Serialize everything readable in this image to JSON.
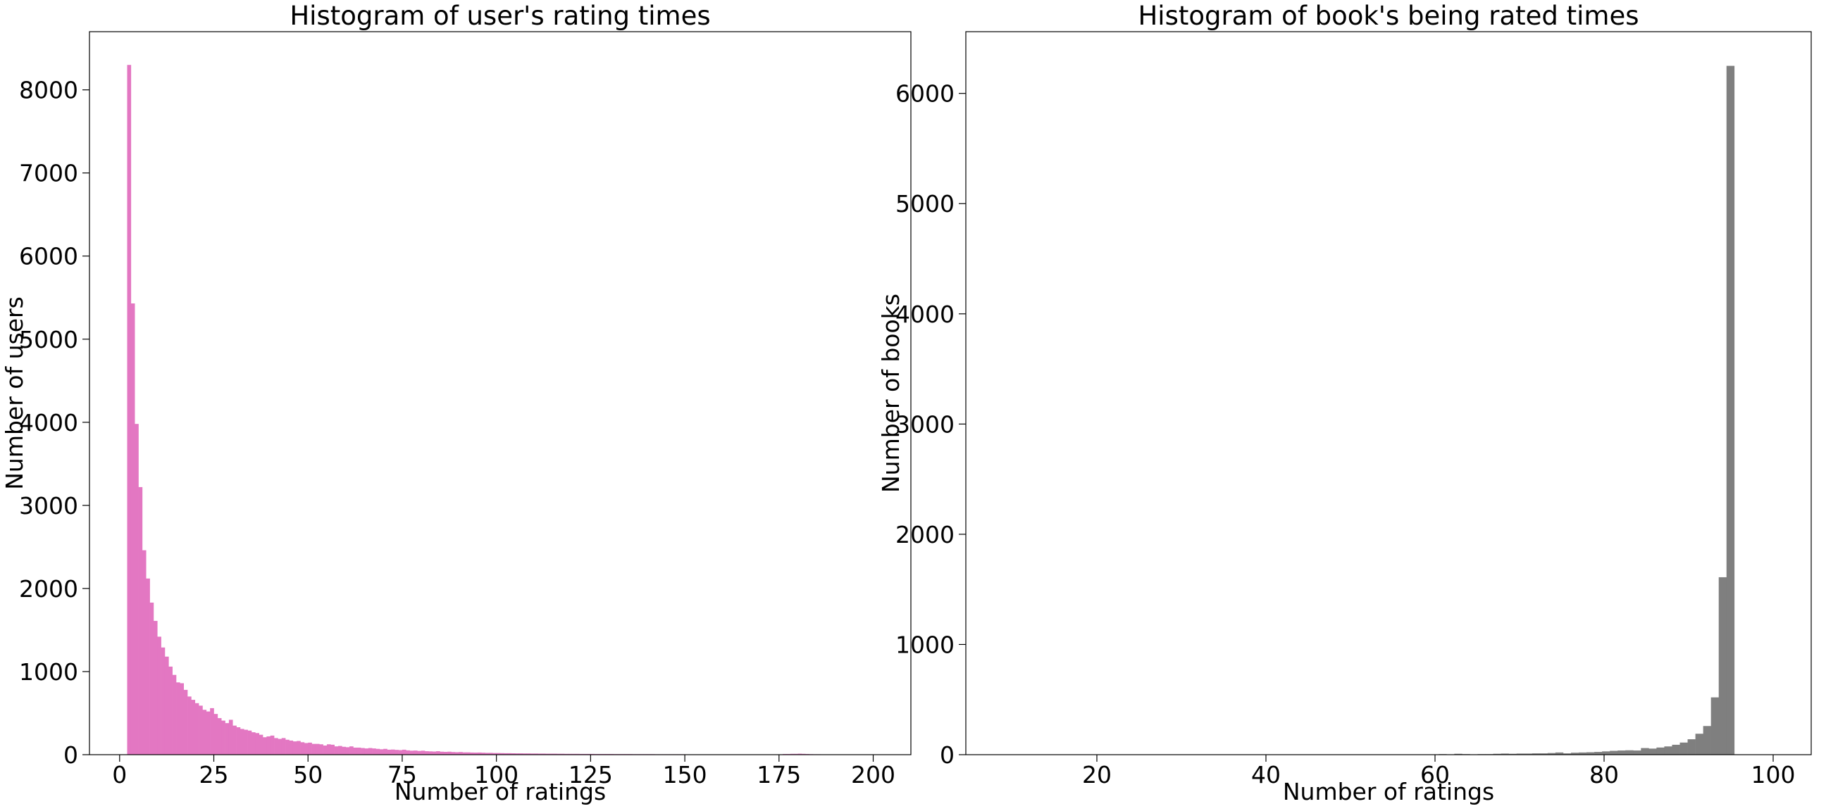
{
  "chart_data": [
    {
      "type": "bar",
      "title": "Histogram of user's rating times",
      "xlabel": "Number of ratings",
      "ylabel": "Number of users",
      "xlim": [
        -8,
        210
      ],
      "ylim": [
        0,
        8700
      ],
      "xticks": [
        0,
        25,
        50,
        75,
        100,
        125,
        150,
        175,
        200
      ],
      "yticks": [
        0,
        1000,
        2000,
        3000,
        4000,
        5000,
        6000,
        7000,
        8000
      ],
      "grid": false,
      "color": "#e377c2",
      "bin_start": 2,
      "bin_width": 1,
      "values": [
        8300,
        5430,
        3980,
        3220,
        2460,
        2120,
        1830,
        1610,
        1420,
        1290,
        1180,
        1060,
        960,
        870,
        860,
        780,
        700,
        660,
        620,
        590,
        540,
        520,
        560,
        490,
        440,
        410,
        380,
        420,
        350,
        330,
        310,
        300,
        290,
        270,
        260,
        240,
        210,
        220,
        230,
        200,
        190,
        200,
        180,
        170,
        160,
        165,
        150,
        140,
        145,
        130,
        130,
        125,
        110,
        125,
        120,
        100,
        105,
        95,
        90,
        100,
        85,
        85,
        80,
        75,
        80,
        75,
        70,
        65,
        70,
        60,
        62,
        58,
        55,
        60,
        52,
        48,
        50,
        45,
        48,
        42,
        40,
        38,
        42,
        36,
        34,
        36,
        32,
        30,
        32,
        28,
        28,
        26,
        25,
        26,
        24,
        22,
        22,
        20,
        20,
        19,
        18,
        18,
        17,
        16,
        16,
        15,
        15,
        14,
        14,
        13,
        13,
        12,
        12,
        12,
        11,
        11,
        10,
        10,
        10,
        10,
        9,
        9,
        9,
        9,
        8,
        8,
        8,
        8,
        8,
        7,
        7,
        7,
        7,
        7,
        6,
        6,
        6,
        6,
        6,
        6,
        5,
        5,
        5,
        5,
        5,
        5,
        5,
        5,
        4,
        4,
        4,
        4,
        4,
        4,
        4,
        4,
        4,
        4,
        4,
        4,
        4,
        4,
        4,
        4,
        4,
        4,
        4,
        4,
        4,
        4,
        4,
        4,
        4,
        4,
        8,
        8,
        10,
        10,
        12,
        10,
        8,
        6,
        5,
        5,
        4,
        4,
        4,
        4,
        4,
        4,
        4,
        4,
        4,
        4
      ]
    },
    {
      "type": "bar",
      "title": "Histogram of book's being rated times",
      "xlabel": "Number of ratings",
      "ylabel": "Number of books",
      "xlim": [
        4.5,
        104.5
      ],
      "ylim": [
        0,
        6560
      ],
      "xticks": [
        20,
        40,
        60,
        80,
        100
      ],
      "yticks": [
        0,
        1000,
        2000,
        3000,
        4000,
        5000,
        6000
      ],
      "grid": false,
      "color": "#7f7f7f",
      "bin_start": 8,
      "bin_width": 0.92,
      "values": [
        2,
        2,
        2,
        2,
        2,
        2,
        2,
        2,
        2,
        2,
        2,
        2,
        2,
        2,
        2,
        2,
        2,
        2,
        2,
        2,
        2,
        2,
        2,
        2,
        2,
        2,
        2,
        2,
        2,
        2,
        2,
        2,
        2,
        2,
        2,
        2,
        2,
        2,
        2,
        2,
        2,
        2,
        2,
        2,
        2,
        2,
        2,
        2,
        2,
        2,
        2,
        2,
        2,
        2,
        3,
        3,
        3,
        5,
        3,
        8,
        5,
        3,
        5,
        5,
        8,
        10,
        8,
        10,
        10,
        12,
        12,
        15,
        20,
        12,
        18,
        20,
        22,
        25,
        30,
        35,
        38,
        40,
        38,
        60,
        55,
        65,
        75,
        90,
        110,
        140,
        190,
        260,
        520,
        1610,
        6250
      ]
    }
  ]
}
